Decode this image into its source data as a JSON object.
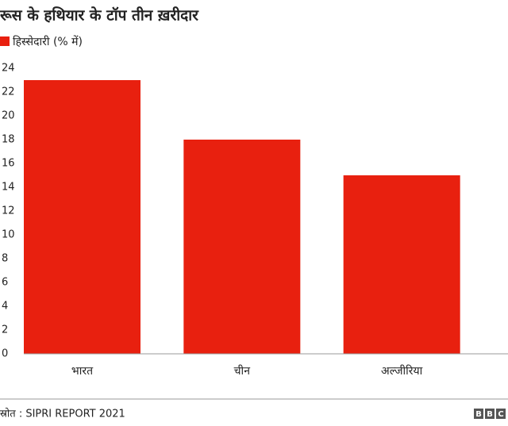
{
  "chart_data": {
    "type": "bar",
    "title": "रूस के हथियार के टॉप तीन ख़रीदार",
    "categories": [
      "भारत",
      "चीन",
      "अल्जीरिया"
    ],
    "series": [
      {
        "name": "हिस्सेदारी (% में)",
        "color": "#e8200f",
        "values": [
          23,
          18,
          15
        ]
      }
    ],
    "ylim": [
      0,
      24
    ],
    "yticks": [
      0,
      2,
      4,
      6,
      8,
      10,
      12,
      14,
      16,
      18,
      20,
      22,
      24
    ],
    "grid": false,
    "legend": "top-left"
  },
  "footer": {
    "source": "स्रोत : SIPRI REPORT 2021",
    "logo": [
      "B",
      "B",
      "C"
    ]
  }
}
